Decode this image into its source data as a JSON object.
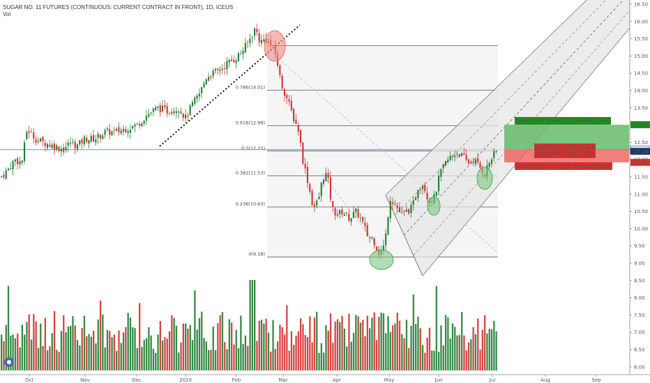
{
  "header": {
    "title": "SUGAR NO. 11 FUTURES (CONTINUOUS: CURRENT CONTRACT IN FRONT), 1D, ICEUS",
    "volume_label": "Vol"
  },
  "colors": {
    "up": "#1e7d32",
    "down": "#d32f2f",
    "fib_line": "#555555",
    "hline": "#5b7bbd"
  },
  "chart_data": {
    "type": "candlestick",
    "x_ticks": [
      "Oct",
      "Nov",
      "Dec",
      "2020",
      "Feb",
      "Mar",
      "Apr",
      "May",
      "Jun",
      "Jul",
      "Aug",
      "Sep"
    ],
    "y_ticks": [
      6.0,
      6.5,
      7.0,
      7.5,
      8.0,
      8.5,
      9.0,
      9.5,
      10.0,
      10.5,
      11.0,
      11.5,
      12.0,
      12.5,
      13.0,
      13.5,
      14.0,
      14.5,
      15.0,
      15.5,
      16.0,
      16.5
    ],
    "ylim": [
      5.9,
      16.6
    ],
    "price_points": [
      [
        0,
        11.5
      ],
      [
        10,
        11.7
      ],
      [
        20,
        12.0
      ],
      [
        30,
        11.9
      ],
      [
        38,
        12.9
      ],
      [
        50,
        12.6
      ],
      [
        60,
        12.5
      ],
      [
        75,
        12.4
      ],
      [
        90,
        12.3
      ],
      [
        100,
        12.5
      ],
      [
        110,
        12.4
      ],
      [
        120,
        12.6
      ],
      [
        135,
        12.6
      ],
      [
        150,
        12.8
      ],
      [
        165,
        12.8
      ],
      [
        180,
        12.9
      ],
      [
        195,
        13.0
      ],
      [
        210,
        13.3
      ],
      [
        225,
        13.5
      ],
      [
        240,
        13.4
      ],
      [
        255,
        13.5
      ],
      [
        265,
        13.2
      ],
      [
        275,
        13.6
      ],
      [
        285,
        13.9
      ],
      [
        295,
        14.4
      ],
      [
        305,
        14.5
      ],
      [
        315,
        14.6
      ],
      [
        325,
        14.8
      ],
      [
        335,
        14.9
      ],
      [
        345,
        15.1
      ],
      [
        355,
        15.4
      ],
      [
        365,
        15.8
      ],
      [
        372,
        15.4
      ],
      [
        380,
        15.5
      ],
      [
        388,
        15.3
      ],
      [
        395,
        15.0
      ],
      [
        402,
        14.2
      ],
      [
        410,
        13.8
      ],
      [
        420,
        13.2
      ],
      [
        428,
        12.8
      ],
      [
        432,
        12.1
      ],
      [
        440,
        11.4
      ],
      [
        448,
        10.6
      ],
      [
        455,
        10.8
      ],
      [
        462,
        11.5
      ],
      [
        468,
        11.6
      ],
      [
        475,
        10.6
      ],
      [
        482,
        10.4
      ],
      [
        490,
        10.5
      ],
      [
        500,
        10.3
      ],
      [
        510,
        10.5
      ],
      [
        518,
        10.2
      ],
      [
        526,
        9.8
      ],
      [
        534,
        9.7
      ],
      [
        542,
        9.3
      ],
      [
        548,
        9.4
      ],
      [
        552,
        9.8
      ],
      [
        558,
        10.9
      ],
      [
        566,
        10.7
      ],
      [
        574,
        10.4
      ],
      [
        582,
        10.5
      ],
      [
        590,
        10.6
      ],
      [
        598,
        11.2
      ],
      [
        606,
        11.3
      ],
      [
        614,
        10.8
      ],
      [
        622,
        10.9
      ],
      [
        630,
        11.6
      ],
      [
        638,
        11.9
      ],
      [
        646,
        12.1
      ],
      [
        654,
        12.2
      ],
      [
        662,
        12.1
      ],
      [
        670,
        11.9
      ],
      [
        678,
        12.0
      ],
      [
        686,
        11.8
      ],
      [
        694,
        11.6
      ],
      [
        700,
        11.9
      ],
      [
        706,
        12.1
      ],
      [
        711,
        12.24
      ]
    ],
    "fib_levels": [
      {
        "ratio": "0.786",
        "price": "14.01"
      },
      {
        "ratio": "0.618",
        "price": "12.98"
      },
      {
        "ratio": "0.5",
        "price": "12.25"
      },
      {
        "ratio": "0.382",
        "price": "11.53"
      },
      {
        "ratio": "0.236",
        "price": "10.63"
      },
      {
        "ratio": "0",
        "price": "9.18"
      }
    ],
    "price_labels": {
      "target": "13.01",
      "hline": "12.29",
      "last": "12.24",
      "stop": "11.92"
    },
    "trade": {
      "target_text": "Target: 0.72 (5.86%) 72, Amount: 1000",
      "stop_text": "Stop: 0.37 (3.01%) 37, Amount: 1000",
      "pnl_text": "Open P&L: −0.05, Qty: 0",
      "ratio_text": "Risk/Reward Ratio: 1.95"
    }
  }
}
